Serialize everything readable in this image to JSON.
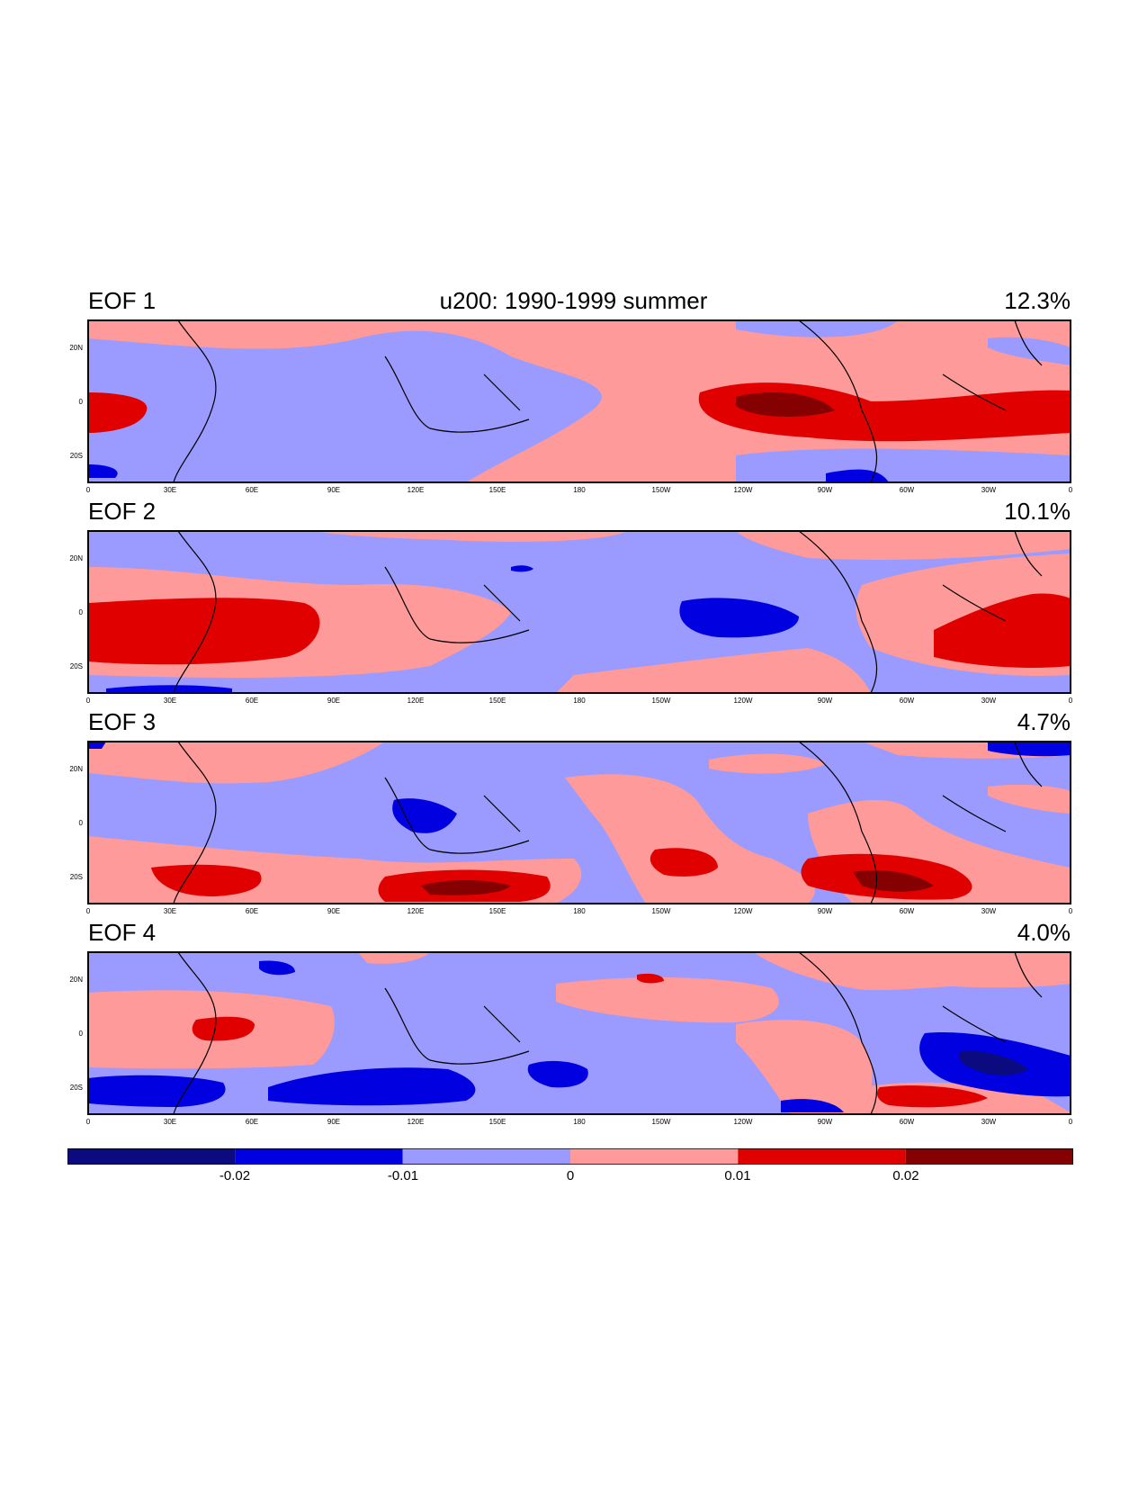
{
  "figure": {
    "title": "u200: 1990-1999 summer"
  },
  "colors": {
    "darkblue": "#0b0b7f",
    "blue": "#0000e0",
    "lightblue": "#9a9aff",
    "lightred": "#ff9a9a",
    "red": "#e00000",
    "darkred": "#850000",
    "coast": "#000000"
  },
  "axes": {
    "lat_ticks": [
      "20N",
      "0",
      "20S"
    ],
    "lon_ticks": [
      "0",
      "30E",
      "60E",
      "90E",
      "120E",
      "150E",
      "180",
      "150W",
      "120W",
      "90W",
      "60W",
      "30W",
      "0"
    ]
  },
  "panels": [
    {
      "label": "EOF 1",
      "percent": "12.3%"
    },
    {
      "label": "EOF 2",
      "percent": "10.1%"
    },
    {
      "label": "EOF 3",
      "percent": "4.7%"
    },
    {
      "label": "EOF 4",
      "percent": "4.0%"
    }
  ],
  "colorbar": {
    "levels": [
      "-0.02",
      "-0.01",
      "0",
      "0.01",
      "0.02"
    ],
    "bins": [
      "darkblue",
      "blue",
      "lightblue",
      "lightred",
      "red",
      "darkred"
    ]
  }
}
